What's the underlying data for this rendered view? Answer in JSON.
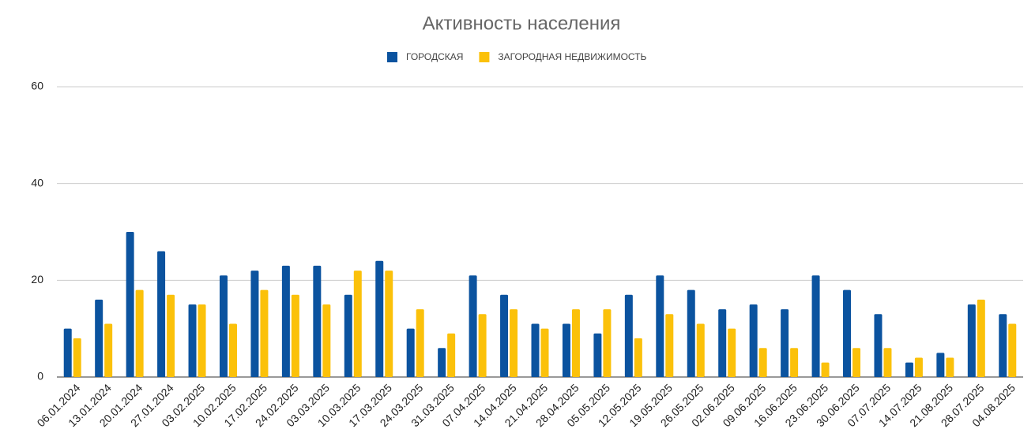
{
  "chart_data": {
    "type": "bar",
    "title": "Активность населения",
    "categories": [
      "06.01.2024",
      "13.01.2024",
      "20.01.2024",
      "27.01.2024",
      "03.02.2025",
      "10.02.2025",
      "17.02.2025",
      "24.02.2025",
      "03.03.2025",
      "10.03.2025",
      "17.03.2025",
      "24.03.2025",
      "31.03.2025",
      "07.04.2025",
      "14.04.2025",
      "21.04.2025",
      "28.04.2025",
      "05.05.2025",
      "12.05.2025",
      "19.05.2025",
      "26.05.2025",
      "02.06.2025",
      "09.06.2025",
      "16.06.2025",
      "23.06.2025",
      "30.06.2025",
      "07.07.2025",
      "14.07.2025",
      "21.08.2025",
      "28.07.2025",
      "04.08.2025"
    ],
    "series": [
      {
        "name": "ГОРОДСКАЯ",
        "color": "#0b539f",
        "values": [
          10,
          16,
          30,
          26,
          15,
          21,
          22,
          23,
          23,
          17,
          24,
          10,
          6,
          21,
          17,
          11,
          11,
          9,
          17,
          21,
          18,
          14,
          15,
          14,
          21,
          18,
          13,
          3,
          5,
          15,
          13
        ]
      },
      {
        "name": "ЗАГОРОДНАЯ НЕДВИЖИМОСТЬ",
        "color": "#fbc10a",
        "values": [
          8,
          11,
          18,
          17,
          15,
          11,
          18,
          17,
          15,
          22,
          22,
          14,
          9,
          13,
          14,
          10,
          14,
          14,
          8,
          13,
          11,
          10,
          6,
          6,
          3,
          6,
          6,
          4,
          4,
          16,
          11
        ]
      }
    ],
    "ylim": [
      0,
      60
    ],
    "yticks": [
      0,
      20,
      40,
      60
    ],
    "grid": true
  }
}
